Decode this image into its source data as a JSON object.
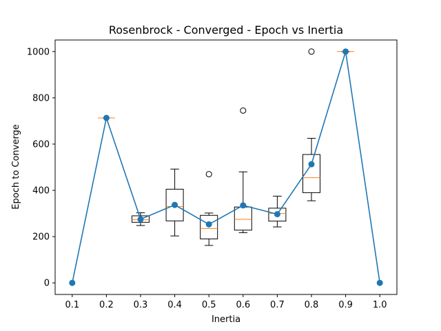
{
  "chart_data": {
    "type": "box",
    "title": "Rosenbrock - Converged - Epoch vs Inertia",
    "xlabel": "Inertia",
    "ylabel": "Epoch to Converge",
    "xlim": [
      0.05,
      1.05
    ],
    "ylim": [
      -50,
      1050
    ],
    "x_ticks": [
      "0.1",
      "0.2",
      "0.3",
      "0.4",
      "0.5",
      "0.6",
      "0.7",
      "0.8",
      "0.9",
      "1.0"
    ],
    "y_ticks": [
      0,
      200,
      400,
      600,
      800,
      1000
    ],
    "boxes": [
      {
        "x": 0.2,
        "whislo": 713,
        "q1": 713,
        "med": 713,
        "q3": 713,
        "whishi": 713,
        "fliers": []
      },
      {
        "x": 0.3,
        "whislo": 248,
        "q1": 262,
        "med": 273,
        "q3": 290,
        "whishi": 303,
        "fliers": []
      },
      {
        "x": 0.4,
        "whislo": 203,
        "q1": 268,
        "med": 330,
        "q3": 405,
        "whishi": 492,
        "fliers": []
      },
      {
        "x": 0.5,
        "whislo": 162,
        "q1": 190,
        "med": 235,
        "q3": 292,
        "whishi": 302,
        "fliers": [
          470
        ]
      },
      {
        "x": 0.6,
        "whislo": 217,
        "q1": 228,
        "med": 275,
        "q3": 328,
        "whishi": 480,
        "fliers": [
          745
        ]
      },
      {
        "x": 0.7,
        "whislo": 242,
        "q1": 267,
        "med": 300,
        "q3": 323,
        "whishi": 375,
        "fliers": []
      },
      {
        "x": 0.8,
        "whislo": 355,
        "q1": 390,
        "med": 455,
        "q3": 555,
        "whishi": 625,
        "fliers": [
          1000
        ]
      },
      {
        "x": 0.9,
        "whislo": 1000,
        "q1": 1000,
        "med": 1000,
        "q3": 1000,
        "whishi": 1000,
        "fliers": []
      }
    ],
    "mean_series": {
      "x": [
        0.1,
        0.2,
        0.3,
        0.4,
        0.5,
        0.6,
        0.7,
        0.8,
        0.9,
        1.0
      ],
      "y": [
        0,
        713,
        275,
        337,
        253,
        335,
        297,
        513,
        1000,
        0
      ]
    },
    "colors": {
      "mean_line": "#1f77b4",
      "median": "#ff7f0e",
      "box": "#000000"
    }
  }
}
